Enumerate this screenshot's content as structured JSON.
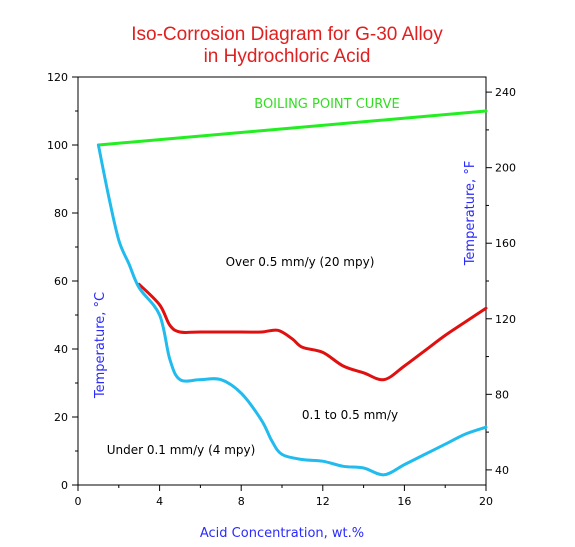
{
  "chart_data": {
    "type": "line",
    "title_line1": "Iso-Corrosion Diagram for G-30 Alloy",
    "title_line2": "in Hydrochloric Acid",
    "xlabel": "Acid Concentration, wt.%",
    "ylabel_left": "Temperature, °C",
    "ylabel_right": "Temperature, °F",
    "xlim": [
      0,
      20
    ],
    "ylim": [
      0,
      120
    ],
    "x_ticks": [
      "0",
      "4",
      "8",
      "12",
      "16",
      "20"
    ],
    "y_ticks_left": [
      "0",
      "20",
      "40",
      "60",
      "80",
      "100",
      "120"
    ],
    "y_ticks_right": [
      "40",
      "80",
      "120",
      "160",
      "200",
      "240"
    ],
    "y_ticks_right_values": [
      40,
      80,
      120,
      160,
      200,
      240
    ],
    "annotations": {
      "boiling": "BOILING POINT CURVE",
      "over": "Over 0.5 mm/y (20 mpy)",
      "mid": "0.1 to 0.5 mm/y",
      "under": "Under 0.1 mm/y (4 mpy)"
    },
    "series": [
      {
        "color": "#22ee22",
        "x": [
          1,
          20
        ],
        "y": [
          100,
          110
        ]
      },
      {
        "color": "#e01010",
        "x": [
          3,
          4,
          4.5,
          5,
          6,
          8,
          9,
          9.8,
          10.5,
          11,
          12,
          13,
          14,
          15,
          16,
          17,
          18,
          19,
          20
        ],
        "y": [
          59,
          53,
          47,
          45,
          45,
          45,
          45,
          45.5,
          43,
          40.5,
          39,
          35,
          33,
          31,
          35,
          39.5,
          44,
          48,
          52
        ]
      },
      {
        "color": "#22bbee",
        "x": [
          1,
          1.5,
          2,
          2.5,
          3,
          4,
          4.5,
          5,
          6,
          7,
          8,
          9,
          9.5,
          10,
          11,
          12,
          13,
          14,
          15,
          16,
          17,
          18,
          19,
          20
        ],
        "y": [
          100,
          85,
          72,
          65,
          58,
          50,
          37,
          31,
          31,
          31,
          27,
          19,
          13,
          9,
          7.5,
          7,
          5.5,
          5,
          3,
          6,
          9,
          12,
          15,
          17
        ]
      }
    ]
  }
}
